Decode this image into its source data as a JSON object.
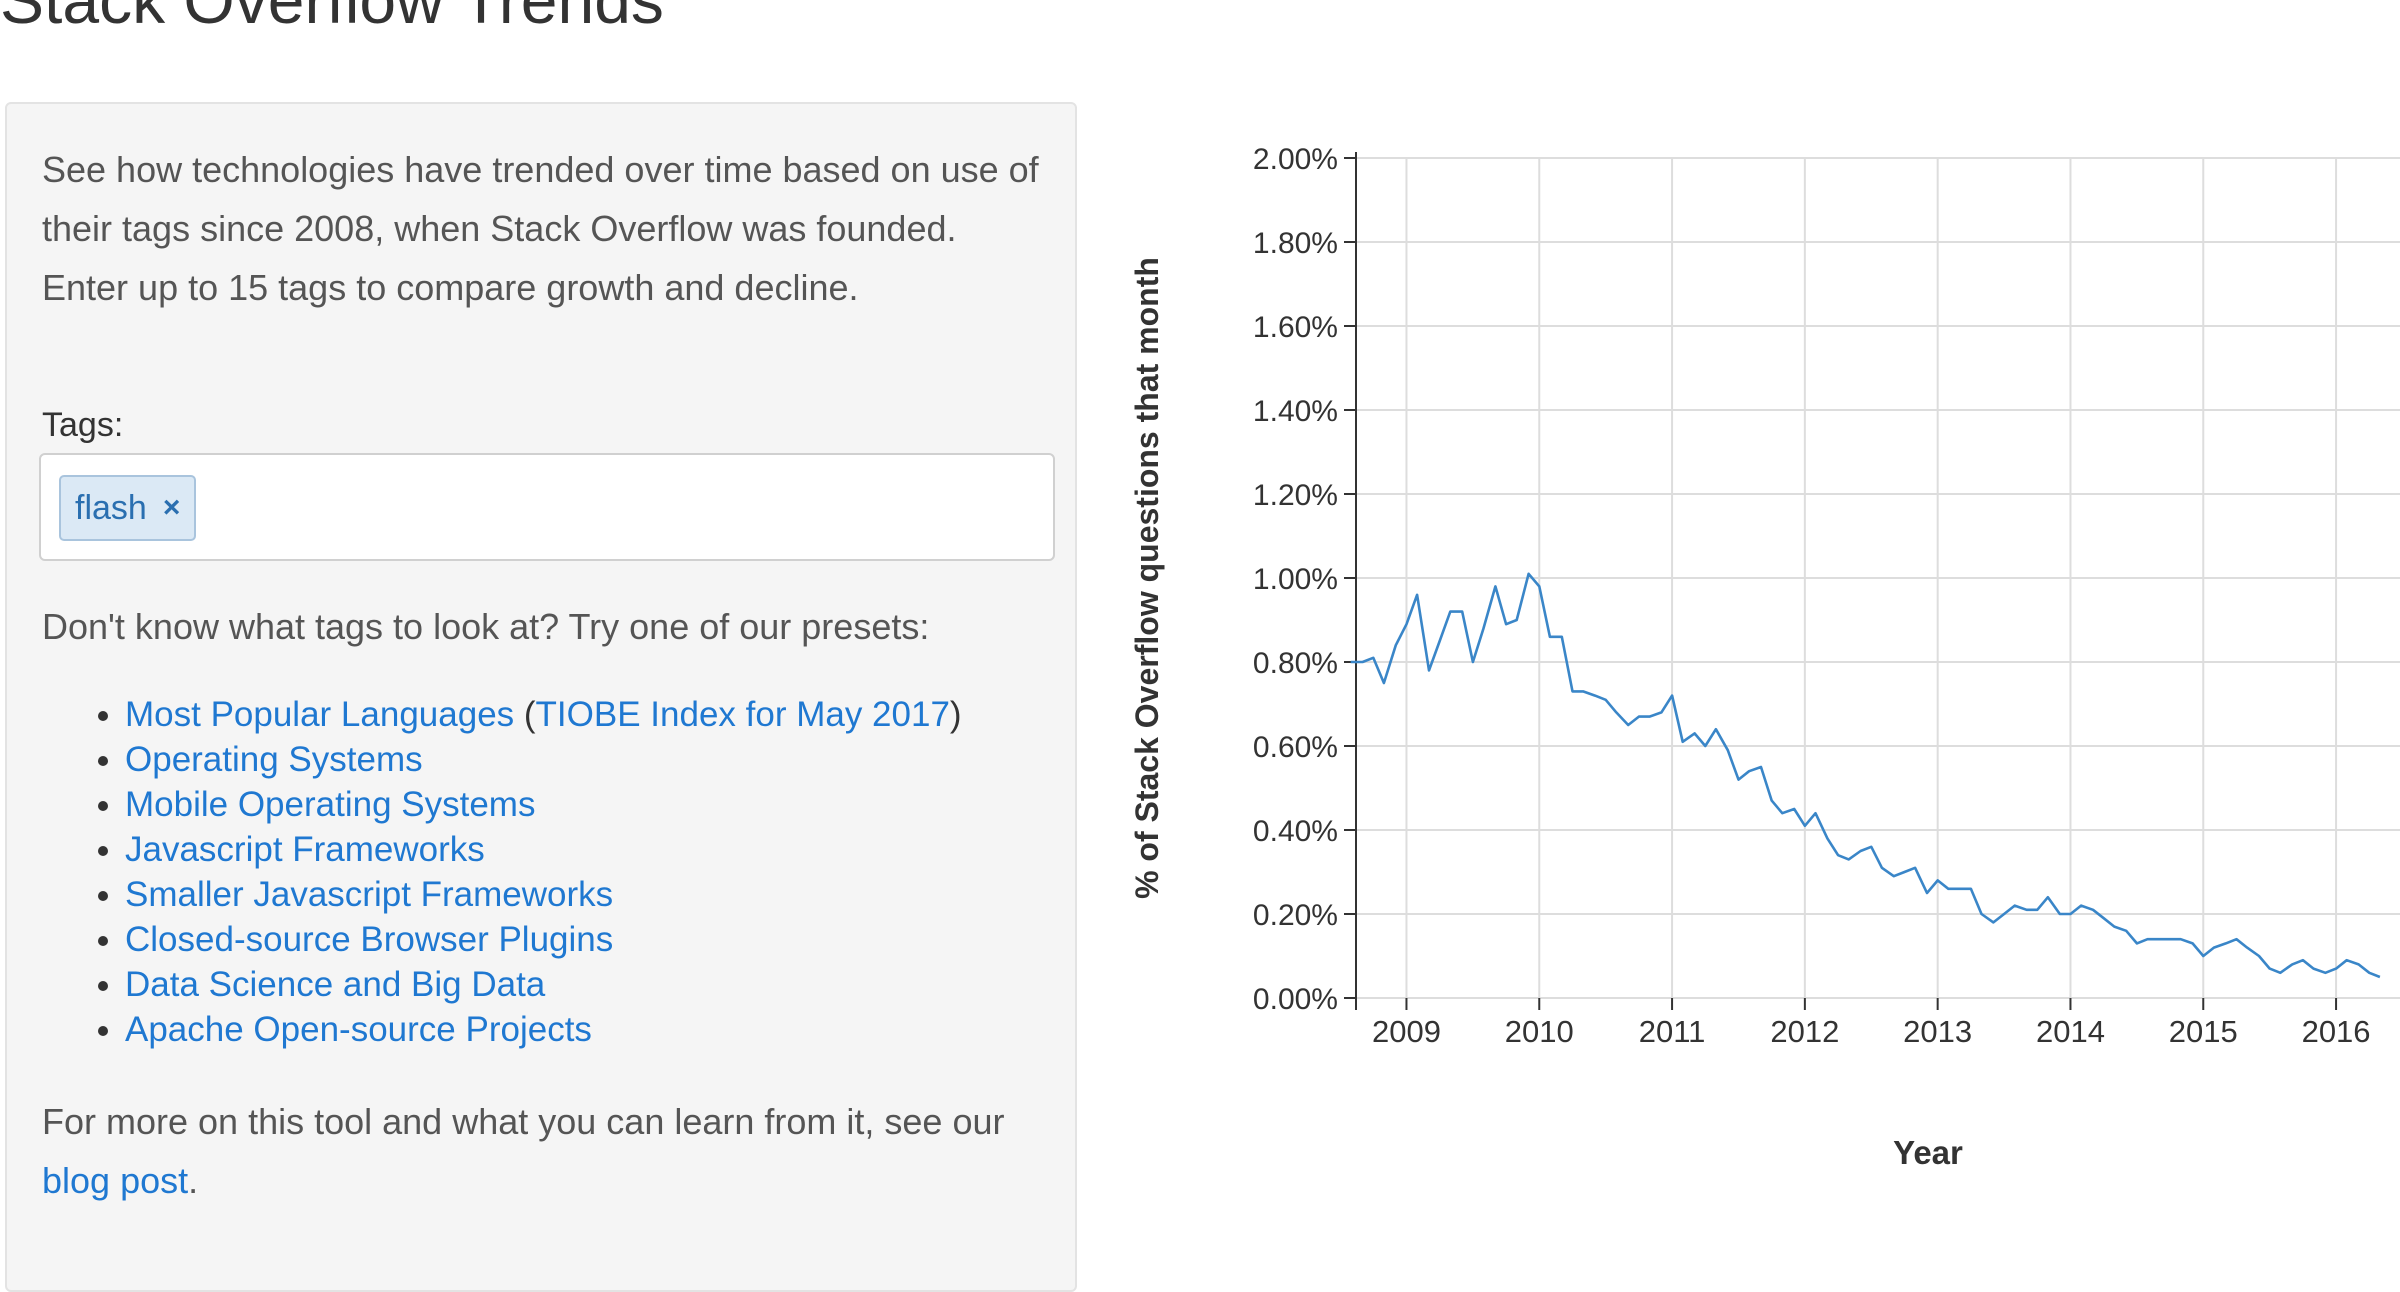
{
  "page": {
    "title": "Stack Overflow Trends"
  },
  "sidebar": {
    "intro": "See how technologies have trended over time based on use of their tags since 2008, when Stack Overflow was founded. Enter up to 15 tags to compare growth and decline.",
    "tags_label": "Tags:",
    "tags": [
      {
        "label": "flash",
        "remove_icon": "×"
      }
    ],
    "presets_prompt": "Don't know what tags to look at? Try one of our presets:",
    "presets": [
      {
        "label": "Most Popular Languages",
        "extra_link": "TIOBE Index for May 2017"
      },
      {
        "label": "Operating Systems"
      },
      {
        "label": "Mobile Operating Systems"
      },
      {
        "label": "Javascript Frameworks"
      },
      {
        "label": "Smaller Javascript Frameworks"
      },
      {
        "label": "Closed-source Browser Plugins"
      },
      {
        "label": "Data Science and Big Data"
      },
      {
        "label": "Apache Open-source Projects"
      }
    ],
    "outro_text": "For more on this tool and what you can learn from it, see our ",
    "outro_link": "blog post",
    "outro_end": "."
  },
  "chart_data": {
    "type": "line",
    "xlabel": "Year",
    "ylabel": "% of Stack Overflow questions that month",
    "x_ticks": [
      "2009",
      "2010",
      "2011",
      "2012",
      "2013",
      "2014",
      "2015",
      "2016"
    ],
    "y_ticks": [
      "0.00%",
      "0.20%",
      "0.40%",
      "0.60%",
      "0.80%",
      "1.00%",
      "1.20%",
      "1.40%",
      "1.60%",
      "1.80%",
      "2.00%"
    ],
    "ylim": [
      0,
      2.0
    ],
    "grid": true,
    "line_color": "#3a86c8",
    "series": [
      {
        "x": [
          2008.58,
          2008.67,
          2008.75,
          2008.83,
          2008.92,
          2009.0,
          2009.08,
          2009.17,
          2009.25,
          2009.33,
          2009.42,
          2009.5,
          2009.58,
          2009.67,
          2009.75,
          2009.83,
          2009.92,
          2010.0,
          2010.08,
          2010.17,
          2010.25,
          2010.33,
          2010.42,
          2010.5,
          2010.58,
          2010.67,
          2010.75,
          2010.83,
          2010.92,
          2011.0,
          2011.08,
          2011.17,
          2011.25,
          2011.33,
          2011.42,
          2011.5,
          2011.58,
          2011.67,
          2011.75,
          2011.83,
          2011.92,
          2012.0,
          2012.08,
          2012.17,
          2012.25,
          2012.33,
          2012.42,
          2012.5,
          2012.58,
          2012.67,
          2012.75,
          2012.83,
          2012.92,
          2013.0,
          2013.08,
          2013.17,
          2013.25,
          2013.33,
          2013.42,
          2013.5,
          2013.58,
          2013.67,
          2013.75,
          2013.83,
          2013.92,
          2014.0,
          2014.08,
          2014.17,
          2014.25,
          2014.33,
          2014.42,
          2014.5,
          2014.58,
          2014.67,
          2014.75,
          2014.83,
          2014.92,
          2015.0,
          2015.08,
          2015.17,
          2015.25,
          2015.33,
          2015.42,
          2015.5,
          2015.58,
          2015.67,
          2015.75,
          2015.83,
          2015.92,
          2016.0,
          2016.08,
          2016.17,
          2016.25,
          2016.33
        ],
        "y": [
          0.8,
          0.8,
          0.81,
          0.75,
          0.84,
          0.89,
          0.96,
          0.78,
          0.85,
          0.92,
          0.92,
          0.8,
          0.88,
          0.98,
          0.89,
          0.9,
          1.01,
          0.98,
          0.86,
          0.86,
          0.73,
          0.73,
          0.72,
          0.71,
          0.68,
          0.65,
          0.67,
          0.67,
          0.68,
          0.72,
          0.61,
          0.63,
          0.6,
          0.64,
          0.59,
          0.52,
          0.54,
          0.55,
          0.47,
          0.44,
          0.45,
          0.41,
          0.44,
          0.38,
          0.34,
          0.33,
          0.35,
          0.36,
          0.31,
          0.29,
          0.3,
          0.31,
          0.25,
          0.28,
          0.26,
          0.26,
          0.26,
          0.2,
          0.18,
          0.2,
          0.22,
          0.21,
          0.21,
          0.24,
          0.2,
          0.2,
          0.22,
          0.21,
          0.19,
          0.17,
          0.16,
          0.13,
          0.14,
          0.14,
          0.14,
          0.14,
          0.13,
          0.1,
          0.12,
          0.13,
          0.14,
          0.12,
          0.1,
          0.07,
          0.06,
          0.08,
          0.09,
          0.07,
          0.06,
          0.07,
          0.09,
          0.08,
          0.06,
          0.05
        ]
      }
    ]
  }
}
